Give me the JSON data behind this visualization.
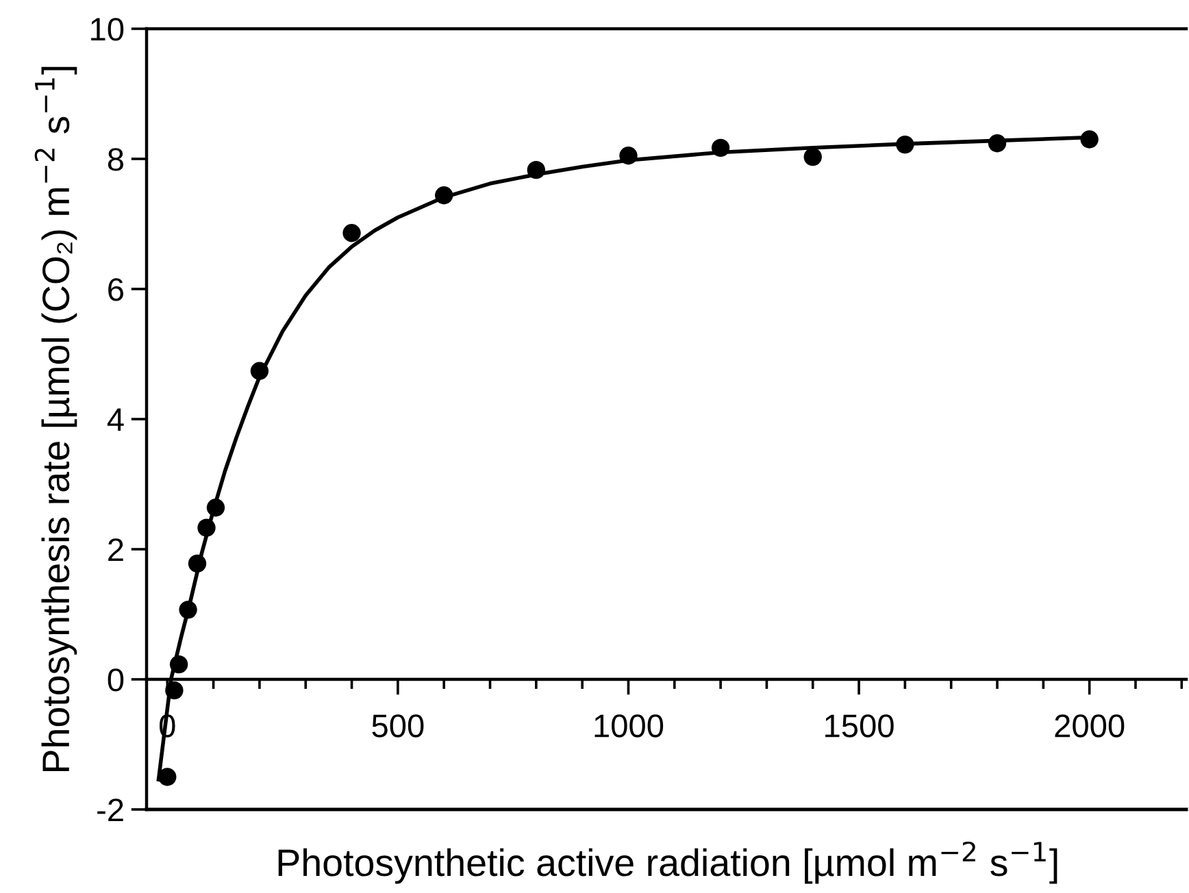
{
  "chart_data": {
    "type": "scatter",
    "xlabel": "Photosynthetic active radiation [µmol m$^{−2}$ s$^{−1}$]",
    "ylabel": "Photosynthesis rate [µmol (CO₂) m$^{−2}$ s$^{−1}$]",
    "xlim": [
      -45,
      2210
    ],
    "ylim": [
      -2,
      10
    ],
    "xticks": [
      0,
      500,
      1000,
      1500,
      2000
    ],
    "yticks": [
      -2,
      0,
      2,
      4,
      6,
      8,
      10
    ],
    "grid": false,
    "legend": false,
    "series": [
      {
        "marker": "circle",
        "color": "#000000",
        "x": [
          0,
          15,
          25,
          45,
          65,
          85,
          105,
          200,
          400,
          600,
          800,
          1000,
          1200,
          1400,
          1600,
          1800,
          2000
        ],
        "values": [
          -1.5,
          -0.17,
          0.23,
          1.07,
          1.78,
          2.33,
          2.64,
          4.74,
          6.86,
          7.44,
          7.83,
          8.05,
          8.17,
          8.03,
          8.22,
          8.24,
          8.3
        ]
      },
      {
        "type": "line",
        "marker": "none",
        "color": "#000000",
        "line_style": "solid",
        "x": [
          -19,
          8,
          30,
          50,
          75,
          100,
          125,
          150,
          175,
          200,
          250,
          300,
          350,
          400,
          450,
          500,
          600,
          700,
          800,
          900,
          1000,
          1200,
          1400,
          1600,
          1800,
          2000
        ],
        "values": [
          -1.54,
          0,
          0.65,
          1.2,
          1.95,
          2.6,
          3.2,
          3.72,
          4.2,
          4.65,
          5.35,
          5.9,
          6.33,
          6.65,
          6.9,
          7.1,
          7.41,
          7.62,
          7.76,
          7.88,
          7.98,
          8.1,
          8.17,
          8.23,
          8.28,
          8.33
        ]
      }
    ]
  }
}
